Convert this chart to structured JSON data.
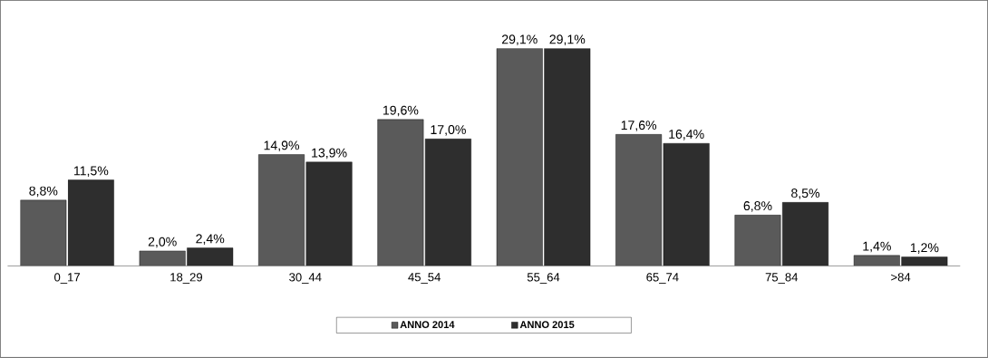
{
  "chart_data": {
    "type": "bar",
    "categories": [
      "0_17",
      "18_29",
      "30_44",
      "45_54",
      "55_64",
      "65_74",
      "75_84",
      ">84"
    ],
    "series": [
      {
        "name": "ANNO 2014",
        "color": "#5a5a5a",
        "values": [
          8.8,
          2.0,
          14.9,
          19.6,
          29.1,
          17.6,
          6.8,
          1.4
        ],
        "value_labels": [
          "8,8%",
          "2,0%",
          "14,9%",
          "19,6%",
          "29,1%",
          "17,6%",
          "6,8%",
          "1,4%"
        ]
      },
      {
        "name": "ANNO 2015",
        "color": "#2e2e2e",
        "values": [
          11.5,
          2.4,
          13.9,
          17.0,
          29.1,
          16.4,
          8.5,
          1.2
        ],
        "value_labels": [
          "11,5%",
          "2,4%",
          "13,9%",
          "17,0%",
          "29,1%",
          "16,4%",
          "8,5%",
          "1,2%"
        ]
      }
    ],
    "legend": "bottom"
  }
}
